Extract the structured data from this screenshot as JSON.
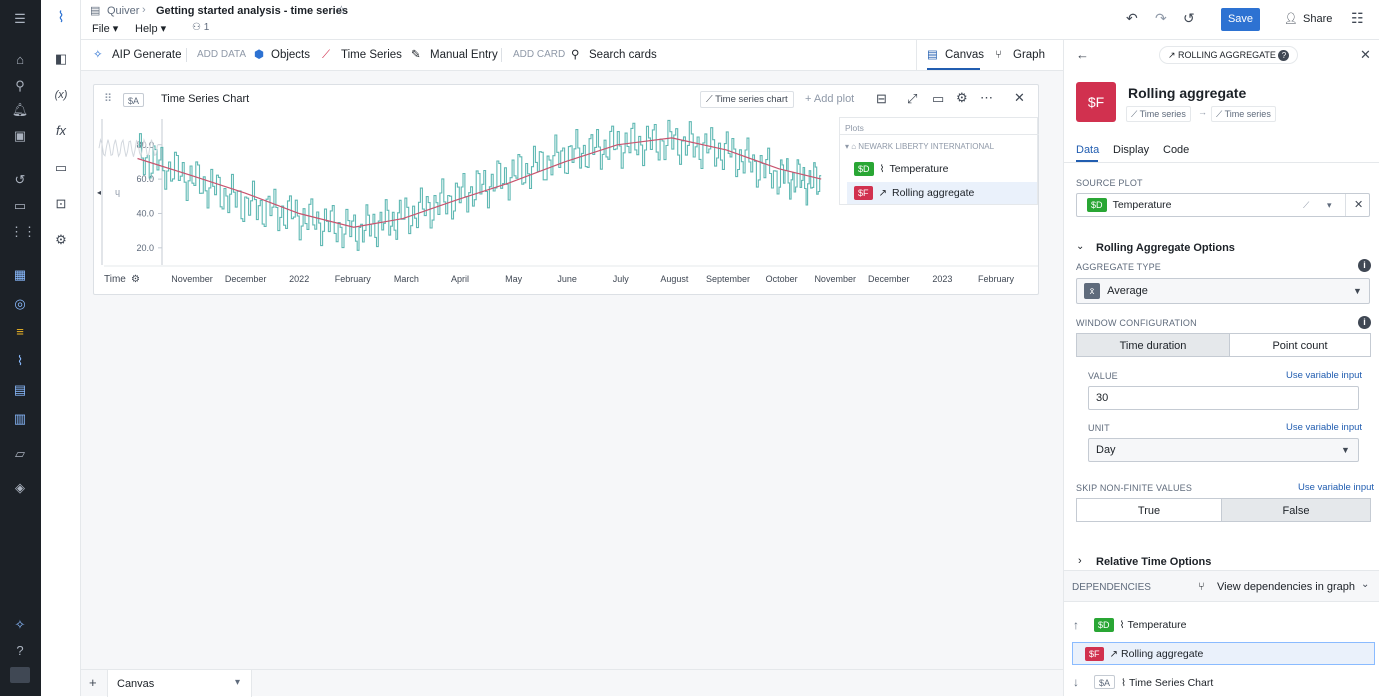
{
  "breadcrumb": {
    "app": "Quiver",
    "title": "Getting started analysis - time series"
  },
  "menu": {
    "file": "File",
    "help": "Help",
    "users": "1"
  },
  "topbar": {
    "save": "Save",
    "share": "Share"
  },
  "toolbar": {
    "aip": "AIP Generate",
    "add_data": "ADD DATA",
    "objects": "Objects",
    "time_series": "Time Series",
    "manual_entry": "Manual Entry",
    "add_card": "ADD CARD",
    "search_cards": "Search cards",
    "canvas": "Canvas",
    "graph": "Graph"
  },
  "card": {
    "ref": "$A",
    "title": "Time Series Chart",
    "type_btn": "Time series chart",
    "add_plot": "Add plot",
    "axis_label": "Time"
  },
  "legend": {
    "header": "Plots",
    "group": "NEWARK LIBERTY INTERNATIONAL",
    "items": [
      {
        "ref": "$D",
        "name": "Temperature"
      },
      {
        "ref": "$F",
        "name": "Rolling aggregate"
      }
    ]
  },
  "chart_data": {
    "type": "line",
    "x": [
      "2021-10-01",
      "2021-11-01",
      "2021-12-01",
      "2022-01-01",
      "2022-02-01",
      "2022-03-01",
      "2022-04-01",
      "2022-05-01",
      "2022-06-01",
      "2022-07-01",
      "2022-08-01",
      "2022-09-01",
      "2022-10-01",
      "2022-10-25"
    ],
    "series": [
      {
        "name": "Temperature",
        "color": "#5fb8b3",
        "values": [
          74,
          60,
          46,
          38,
          30,
          38,
          50,
          62,
          74,
          80,
          82,
          76,
          62,
          57
        ]
      },
      {
        "name": "Rolling aggregate",
        "color": "#c8536e",
        "values": [
          72,
          62,
          52,
          40,
          32,
          37,
          48,
          58,
          70,
          80,
          84,
          77,
          66,
          60
        ]
      }
    ],
    "yticks": [
      "80.0",
      "60.0",
      "40.0",
      "20.0"
    ],
    "xticks": [
      "November",
      "December",
      "2022",
      "February",
      "March",
      "April",
      "May",
      "June",
      "July",
      "August",
      "September",
      "October",
      "November",
      "December",
      "2023",
      "February"
    ],
    "ylim": [
      10,
      95
    ]
  },
  "bottombar": {
    "add": "+",
    "tab": "Canvas"
  },
  "panel": {
    "header": "ROLLING AGGREGATE",
    "badge": "$F",
    "title": "Rolling aggregate",
    "in_type": "Time series",
    "out_type": "Time series",
    "tabs": [
      "Data",
      "Display",
      "Code"
    ],
    "source_plot_label": "SOURCE PLOT",
    "source_ref": "$D",
    "source_name": "Temperature",
    "section": "Rolling Aggregate Options",
    "agg_type_label": "AGGREGATE TYPE",
    "agg_type": "Average",
    "window_label": "WINDOW CONFIGURATION",
    "window_opts": [
      "Time duration",
      "Point count"
    ],
    "value_label": "VALUE",
    "value": "30",
    "unit_label": "UNIT",
    "unit": "Day",
    "use_var": "Use variable input",
    "skip_label": "SKIP NON-FINITE VALUES",
    "skip_opts": [
      "True",
      "False"
    ],
    "relative": "Relative Time Options",
    "deps_label": "DEPENDENCIES",
    "deps_link": "View dependencies in graph",
    "deps": [
      {
        "ref": "$D",
        "name": "Temperature"
      },
      {
        "ref": "$F",
        "name": "Rolling aggregate"
      },
      {
        "ref": "$A",
        "name": "Time Series Chart"
      }
    ]
  }
}
